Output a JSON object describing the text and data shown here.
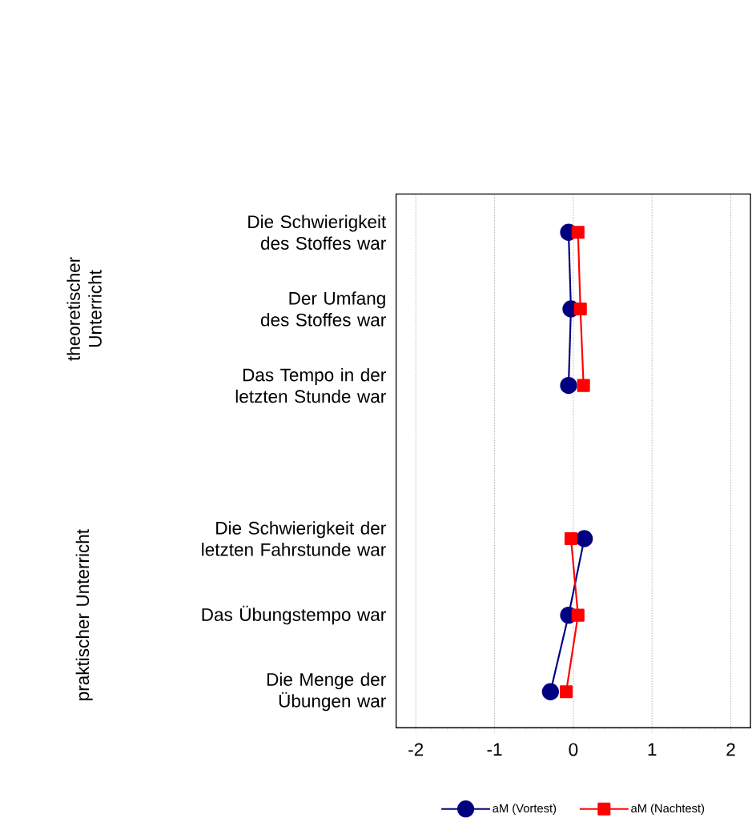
{
  "chart_data": {
    "type": "line",
    "orientation": "horizontal",
    "categories": [
      "Die Schwierigkeit des Stoffes war",
      "Der Umfang des Stoffes war",
      "Das Tempo in der letzten Stunde war",
      null,
      "Die Schwierigkeit der letzten Fahrstunde war",
      "Das Übungstempo war",
      "Die Menge der Übungen war"
    ],
    "series": [
      {
        "name": "aM (Vortest)",
        "color": "#000080",
        "marker": "circle",
        "values": [
          -0.06,
          -0.03,
          -0.06,
          null,
          0.14,
          -0.06,
          -0.29
        ]
      },
      {
        "name": "aM (Nachtest)",
        "color": "#ff0000",
        "marker": "square",
        "values": [
          0.06,
          0.09,
          0.13,
          null,
          -0.03,
          0.06,
          -0.09
        ]
      }
    ],
    "xlim": [
      -2.25,
      2.25
    ],
    "xticks": [
      -2,
      -1,
      0,
      1,
      2
    ],
    "grid": "x",
    "legend": "bottom",
    "annotations": [
      "theoretischer Unterricht",
      "praktischer Unterricht"
    ]
  }
}
